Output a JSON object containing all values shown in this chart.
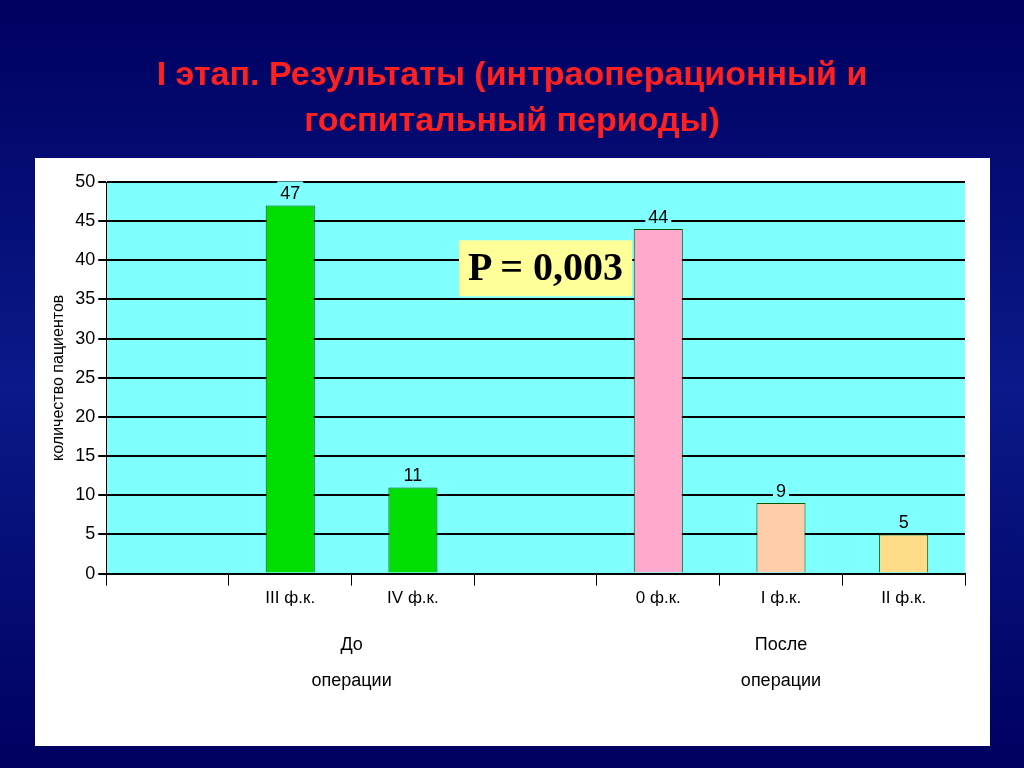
{
  "chart_data": {
    "type": "bar",
    "title": "I этап. Результаты (интраоперационный и госпитальный периоды)",
    "ylabel": "количество пациентов",
    "categories": [
      null,
      "III ф.к.",
      "IV ф.к.",
      null,
      "0 ф.к.",
      "I ф.к.",
      "II ф.к."
    ],
    "values": [
      null,
      47,
      11,
      null,
      44,
      9,
      5
    ],
    "colors": [
      null,
      "#00dd00",
      "#00dd00",
      null,
      "#ffaacc",
      "#ffccaa",
      "#ffdd88"
    ],
    "ylim": [
      0,
      50
    ],
    "yticks": [
      0,
      5,
      10,
      15,
      20,
      25,
      30,
      35,
      40,
      45,
      50
    ],
    "grid": "y",
    "data_labels": true,
    "annotations": [
      "P = 0,003",
      "До операции",
      "После операции"
    ]
  }
}
